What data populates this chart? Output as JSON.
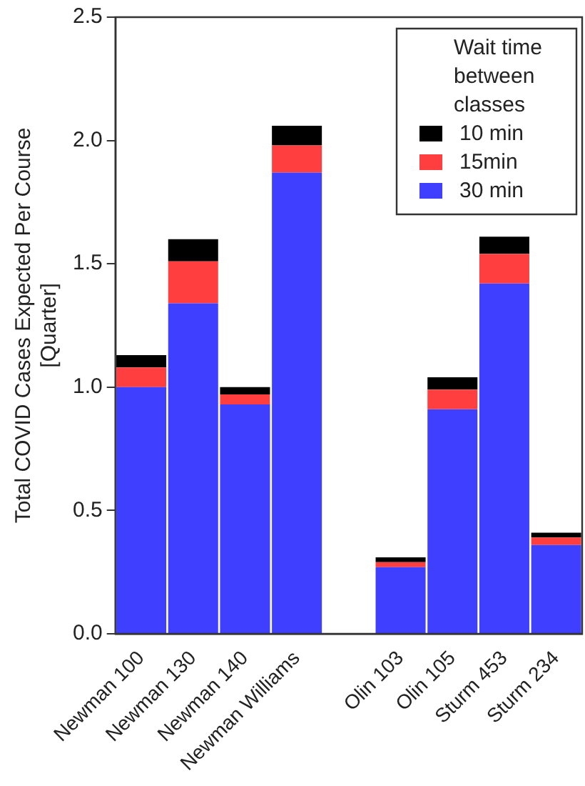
{
  "chart_data": {
    "type": "bar",
    "stacked": true,
    "ylabel": "Total COVID Cases Expected Per Course\n[Quarter]",
    "legend_title": "Wait time between classes",
    "legend": "top right",
    "grid": false,
    "categories": [
      "Newman 100",
      "Newman 130",
      "Newman 140",
      "Newman Williams",
      null,
      "Olin 103",
      "Olin 105",
      "Sturm 453",
      "Sturm 234"
    ],
    "ylim": [
      0,
      2.5
    ],
    "yticks": [
      {
        "value": 0,
        "label": "0.0"
      },
      {
        "value": 0.5,
        "label": "0.5"
      },
      {
        "value": 1,
        "label": "1.0"
      },
      {
        "value": 1.5,
        "label": "1.5"
      },
      {
        "value": 2,
        "label": "2.0"
      },
      {
        "value": 2.5,
        "label": "2.5"
      }
    ],
    "series": [
      {
        "name": "30 min",
        "color": "#3f3fff",
        "values": [
          1.0,
          1.34,
          0.93,
          1.87,
          null,
          0.27,
          0.91,
          1.42,
          0.36
        ]
      },
      {
        "name": "15min",
        "color": "#ff3f3f",
        "values": [
          0.08,
          0.17,
          0.04,
          0.11,
          null,
          0.02,
          0.08,
          0.12,
          0.03
        ]
      },
      {
        "name": "10 min",
        "color": "#000000",
        "values": [
          0.05,
          0.09,
          0.03,
          0.08,
          null,
          0.02,
          0.05,
          0.07,
          0.02
        ]
      }
    ]
  }
}
